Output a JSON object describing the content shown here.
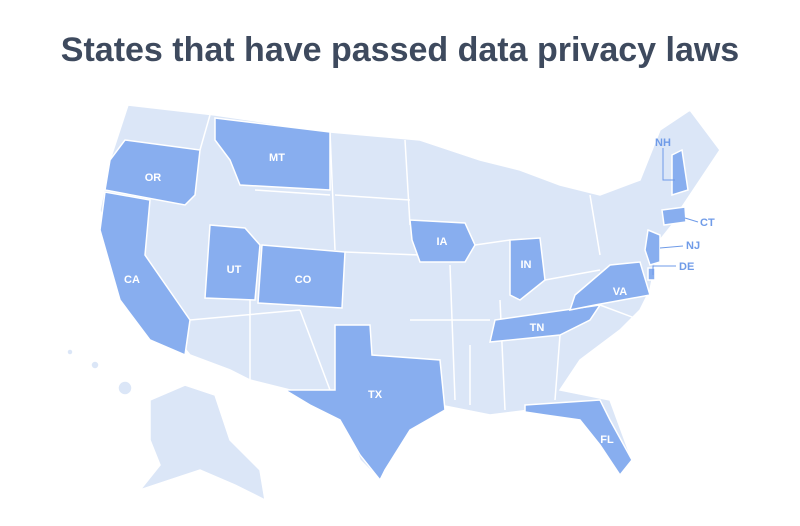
{
  "title": "States that have passed data privacy laws",
  "states": [
    {
      "label": "OR"
    },
    {
      "label": "MT"
    },
    {
      "label": "CA"
    },
    {
      "label": "UT"
    },
    {
      "label": "CO"
    },
    {
      "label": "IA"
    },
    {
      "label": "IN"
    },
    {
      "label": "TN"
    },
    {
      "label": "VA"
    },
    {
      "label": "TX"
    },
    {
      "label": "FL"
    },
    {
      "label": "NH"
    },
    {
      "label": "CT"
    },
    {
      "label": "NJ"
    },
    {
      "label": "DE"
    }
  ]
}
